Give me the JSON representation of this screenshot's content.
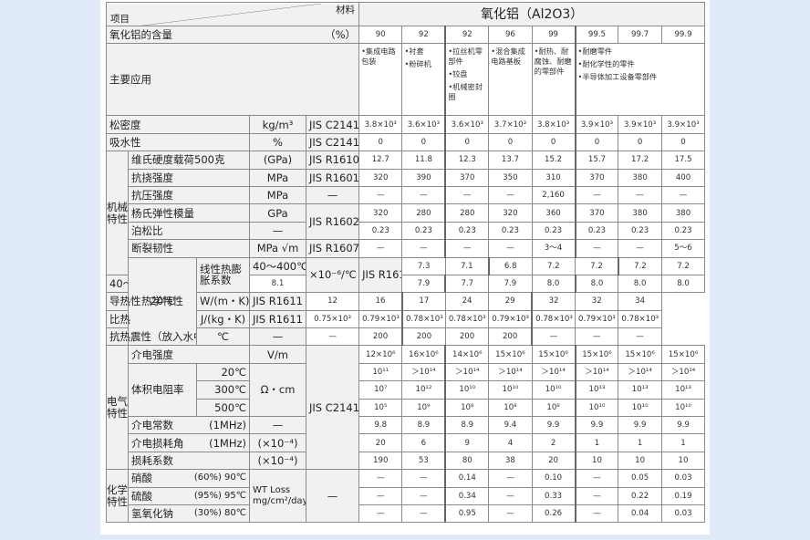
{
  "header": {
    "item_label": "项目",
    "material_label": "材料",
    "material_name": "氧化铝（Al2O3）",
    "content_label": "氧化铝的含量",
    "content_unit": "（%）",
    "purities": [
      "90",
      "92",
      "92",
      "96",
      "99",
      "99.5",
      "99.7",
      "99.9"
    ]
  },
  "applications": {
    "label": "主要应用",
    "cells": [
      [
        "•集成电路包装"
      ],
      [
        "•衬套",
        "•粉碎机"
      ],
      [
        "•拉丝机零部件",
        "•铰盘",
        "•机械密封圈"
      ],
      [
        "•混合集成电路基板"
      ],
      [
        "•耐热、耐腐蚀、耐磨的零部件"
      ],
      [
        "•耐磨零件",
        "•耐化学性的零件",
        "•半导体加工设备零部件"
      ]
    ]
  },
  "groups": {
    "mechanical": "机械特性",
    "thermal": "热学特性",
    "electrical": "电气特性",
    "chemical": "化学特性"
  },
  "rows": {
    "bulk_density": {
      "label": "松密度",
      "unit": "kg/m³",
      "std": "JIS C2141",
      "values": [
        "3.8×10³",
        "3.6×10³",
        "3.6×10³",
        "3.7×10³",
        "3.8×10³",
        "3.9×10³",
        "3.9×10³",
        "3.9×10³"
      ]
    },
    "water_absorption": {
      "label": "吸水性",
      "unit": "%",
      "std": "JIS C2141",
      "values": [
        "0",
        "0",
        "0",
        "0",
        "0",
        "0",
        "0",
        "0"
      ]
    },
    "vickers": {
      "label": "维氏硬度载荷500克",
      "unit": "(GPa)",
      "std": "JIS R1610",
      "values": [
        "12.7",
        "11.8",
        "12.3",
        "13.7",
        "15.2",
        "15.7",
        "17.2",
        "17.5"
      ]
    },
    "flexural": {
      "label": "抗挠强度",
      "unit": "MPa",
      "std": "JIS R1601",
      "values": [
        "320",
        "390",
        "370",
        "350",
        "310",
        "370",
        "380",
        "400"
      ]
    },
    "compressive": {
      "label": "抗压强度",
      "unit": "MPa",
      "std": "—",
      "values": [
        "—",
        "—",
        "—",
        "—",
        "2,160",
        "—",
        "—",
        "—"
      ]
    },
    "youngs": {
      "label": "杨氏弹性模量",
      "unit": "GPa",
      "std": "JIS R1602",
      "values": [
        "320",
        "280",
        "280",
        "320",
        "360",
        "370",
        "380",
        "380"
      ]
    },
    "poisson": {
      "label": "泊松比",
      "unit": "—",
      "values": [
        "0.23",
        "0.23",
        "0.23",
        "0.23",
        "0.23",
        "0.23",
        "0.23",
        "0.23"
      ]
    },
    "fracture": {
      "label": "断裂韧性",
      "unit": "MPa √m",
      "std": "JIS R1607",
      "values": [
        "—",
        "—",
        "—",
        "—",
        "3～4",
        "—",
        "—",
        "5～6"
      ]
    },
    "expansion_400": {
      "label": "线性热膨胀系数",
      "temp": "40～400℃",
      "unit": "×10⁻⁶/℃",
      "std": "JIS R1618",
      "values": [
        "7.3",
        "7.1",
        "6.8",
        "7.2",
        "7.2",
        "7.2",
        "7.2",
        "7.2"
      ]
    },
    "expansion_800": {
      "temp": "40～800℃",
      "values": [
        "8.1",
        "7.9",
        "7.7",
        "7.9",
        "8.0",
        "8.0",
        "8.0",
        "8.0"
      ]
    },
    "conductivity": {
      "label": "导热性",
      "temp": "20℃",
      "unit": "W/(m・K)",
      "std": "JIS R1611",
      "values": [
        "12",
        "16",
        "17",
        "24",
        "29",
        "32",
        "32",
        "34"
      ]
    },
    "specific_heat": {
      "label": "比热",
      "unit": "J/(kg・K)",
      "std": "JIS R1611",
      "values": [
        "0.75×10³",
        "0.79×10³",
        "0.78×10³",
        "0.78×10³",
        "0.79×10³",
        "0.78×10³",
        "0.79×10³",
        "0.78×10³"
      ]
    },
    "thermal_shock": {
      "label": "抗热震性（放入水中）",
      "unit": "℃",
      "std": "—",
      "values": [
        "—",
        "200",
        "200",
        "200",
        "200",
        "—",
        "—",
        "—"
      ]
    },
    "dielectric_strength": {
      "label": "介电强度",
      "unit": "V/m",
      "std": "JIS C2141",
      "values": [
        "12×10⁶",
        "16×10⁶",
        "14×10⁶",
        "15×10⁶",
        "15×10⁶",
        "15×10⁶",
        "15×10⁶",
        "15×10⁶"
      ]
    },
    "resistivity_20": {
      "label": "体积电阻率",
      "temp": "20℃",
      "unit": "Ω・cm",
      "values": [
        "10¹¹",
        "＞10¹⁴",
        "＞10¹⁴",
        "＞10¹⁴",
        "＞10¹⁴",
        "＞10¹⁴",
        "＞10¹⁴",
        "＞10¹⁴"
      ]
    },
    "resistivity_300": {
      "temp": "300℃",
      "values": [
        "10⁷",
        "10¹²",
        "10¹⁰",
        "10¹⁰",
        "10¹⁰",
        "10¹³",
        "10¹³",
        "10¹³"
      ]
    },
    "resistivity_500": {
      "temp": "500℃",
      "values": [
        "10⁵",
        "10⁹",
        "10⁸",
        "10⁸",
        "10⁸",
        "10¹⁰",
        "10¹⁰",
        "10¹⁰"
      ]
    },
    "dielectric_constant": {
      "label": "介电常数",
      "cond": "(1MHz)",
      "unit": "—",
      "values": [
        "9.8",
        "8.9",
        "8.9",
        "9.4",
        "9.9",
        "9.9",
        "9.9",
        "9.9"
      ]
    },
    "loss_angle": {
      "label": "介电损耗角",
      "cond": "(1MHz)",
      "unit": "(×10⁻⁴)",
      "values": [
        "20",
        "6",
        "9",
        "4",
        "2",
        "1",
        "1",
        "1"
      ]
    },
    "loss_factor": {
      "label": "损耗系数",
      "unit": "(×10⁻⁴)",
      "values": [
        "190",
        "53",
        "80",
        "38",
        "20",
        "10",
        "10",
        "10"
      ]
    },
    "nitric": {
      "label": "硝酸",
      "cond": "(60%) 90℃",
      "unit_line1": "WT Loss",
      "unit_line2": "mg/cm²/day",
      "std": "—",
      "values": [
        "—",
        "—",
        "0.14",
        "—",
        "0.10",
        "—",
        "0.05",
        "0.03"
      ]
    },
    "sulfuric": {
      "label": "硫酸",
      "cond": "(95%) 95℃",
      "values": [
        "—",
        "—",
        "0.34",
        "—",
        "0.33",
        "—",
        "0.22",
        "0.19"
      ]
    },
    "naoh": {
      "label": "氢氧化钠",
      "cond": "(30%) 80℃",
      "values": [
        "—",
        "—",
        "0.95",
        "—",
        "0.26",
        "—",
        "0.04",
        "0.03"
      ]
    }
  }
}
